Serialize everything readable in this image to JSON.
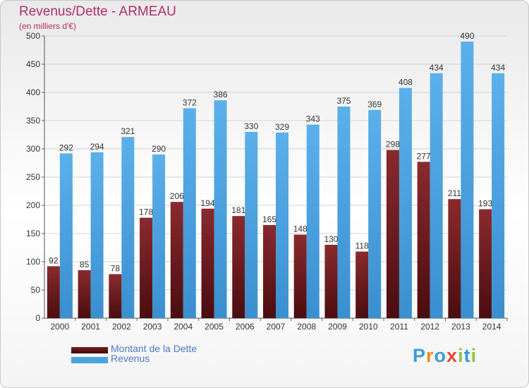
{
  "title": "Revenus/Dette - ARMEAU",
  "subtitle": "(en milliers d'€)",
  "colors": {
    "dette": "#7a1f25",
    "revenus": "#4da3e0",
    "title": "#b0306a",
    "legend_text": "#4c78c8"
  },
  "legend": {
    "items": [
      {
        "label": "Montant de la Dette",
        "color": "#6b1a1a"
      },
      {
        "label": "Revenus",
        "color": "#4da3e0"
      }
    ]
  },
  "logo": {
    "text": "Proxiti",
    "letters": [
      {
        "ch": "P",
        "color": "#3a9bd9"
      },
      {
        "ch": "r",
        "color": "#f08a1c"
      },
      {
        "ch": "o",
        "color": "#3a9bd9"
      },
      {
        "ch": "x",
        "color": "#e8463c"
      },
      {
        "ch": "i",
        "color": "#8cc63f"
      },
      {
        "ch": "t",
        "color": "#3a9bd9"
      },
      {
        "ch": "i",
        "color": "#8cc63f"
      }
    ]
  },
  "chart_data": {
    "type": "bar",
    "title": "Revenus/Dette - ARMEAU",
    "subtitle": "(en milliers d'€)",
    "categories": [
      "2000",
      "2001",
      "2002",
      "2003",
      "2004",
      "2005",
      "2006",
      "2007",
      "2008",
      "2009",
      "2010",
      "2011",
      "2012",
      "2013",
      "2014"
    ],
    "series": [
      {
        "name": "Montant de la Dette",
        "values": [
          92,
          85,
          78,
          178,
          206,
          194,
          181,
          165,
          148,
          130,
          118,
          298,
          277,
          211,
          193
        ]
      },
      {
        "name": "Revenus",
        "values": [
          292,
          294,
          321,
          290,
          372,
          386,
          330,
          329,
          343,
          375,
          369,
          408,
          434,
          490,
          434
        ]
      }
    ],
    "data_labels": [
      [
        "92",
        "85",
        "78",
        "178",
        "206",
        "194",
        "181",
        "165",
        "148",
        "130",
        "118",
        "298",
        "277",
        "211",
        "193"
      ],
      [
        "292",
        "294",
        "321",
        "290",
        "372",
        "386",
        "330",
        "329",
        "343",
        "375",
        "369",
        "408",
        "434",
        "490",
        "434"
      ]
    ],
    "ylim": [
      0,
      500
    ],
    "yticks": [
      0,
      50,
      100,
      150,
      200,
      250,
      300,
      350,
      400,
      450,
      500
    ],
    "grid": true,
    "legend_position": "bottom-left"
  }
}
